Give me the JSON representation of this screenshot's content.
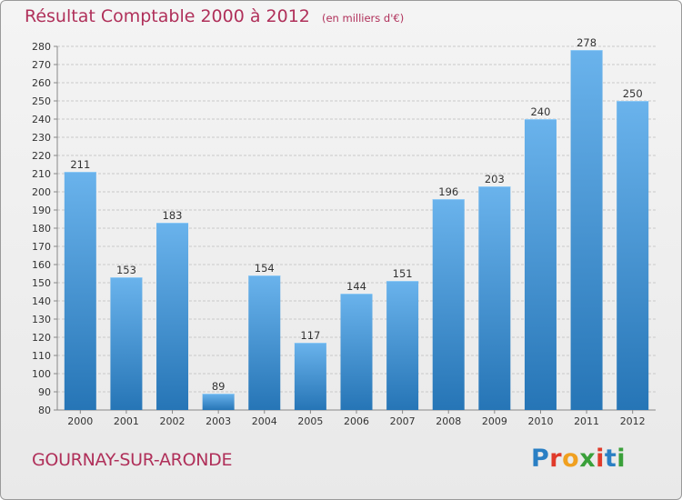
{
  "header": {
    "title": "Résultat Comptable 2000 à 2012",
    "subtitle": "(en milliers d'€)"
  },
  "footer": {
    "location": "GOURNAY-SUR-ARONDE",
    "logo_text": "Proxiti",
    "logo_colors": [
      "#2a7fc4",
      "#e03a2a",
      "#f0a020",
      "#3aa03a",
      "#e03a2a",
      "#2a7fc4",
      "#3aa03a"
    ]
  },
  "colors": {
    "bar_top": "#6ab3ec",
    "bar_bottom": "#2675b6",
    "grid": "#c9c9c9",
    "axis_text": "#333333",
    "title_color": "#b0305a"
  },
  "chart_data": {
    "type": "bar",
    "title": "Résultat Comptable 2000 à 2012",
    "subtitle": "(en milliers d'€)",
    "xlabel": "",
    "ylabel": "",
    "categories": [
      "2000",
      "2001",
      "2002",
      "2003",
      "2004",
      "2005",
      "2006",
      "2007",
      "2008",
      "2009",
      "2010",
      "2011",
      "2012"
    ],
    "values": [
      211,
      153,
      183,
      89,
      154,
      117,
      144,
      151,
      196,
      203,
      240,
      278,
      250
    ],
    "ylim": [
      80,
      280
    ],
    "ytick_step": 10,
    "grid": true,
    "data_labels": true
  }
}
